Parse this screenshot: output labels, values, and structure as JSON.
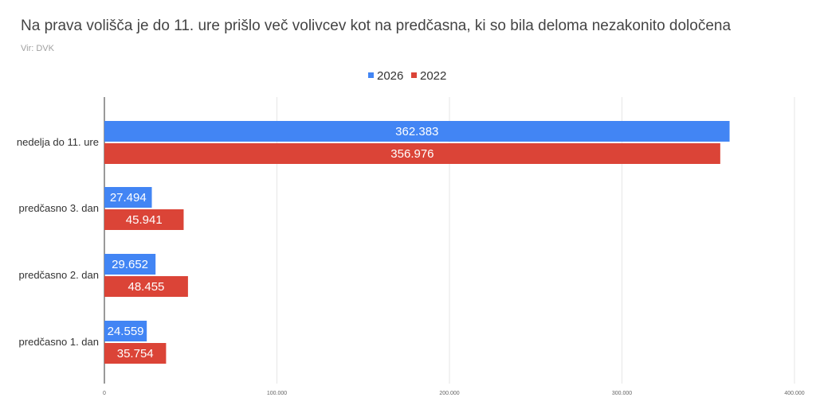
{
  "chart_data": {
    "type": "bar",
    "orientation": "horizontal",
    "title": "Na prava volišča je do 11. ure prišlo več volivcev kot na predčasna, ki so bila deloma nezakonito določena",
    "subtitle": "Vir: DVK",
    "categories": [
      "nedelja do 11. ure",
      "predčasno  3. dan",
      "predčasno  2. dan",
      "predčasno 1. dan"
    ],
    "series": [
      {
        "name": "2026",
        "color": "#4285f4",
        "values": [
          362383,
          27494,
          29652,
          24559
        ],
        "labels": [
          "362.383",
          "27.494",
          "29.652",
          "24.559"
        ]
      },
      {
        "name": "2022",
        "color": "#db4437",
        "values": [
          356976,
          45941,
          48455,
          35754
        ],
        "labels": [
          "356.976",
          "45.941",
          "48.455",
          "35.754"
        ]
      }
    ],
    "xlim": [
      0,
      400000
    ],
    "xticks": [
      0,
      100000,
      200000,
      300000,
      400000
    ],
    "xtick_labels": [
      "0",
      "100.000",
      "200.000",
      "300.000",
      "400.000"
    ],
    "grid": true,
    "legend": "top-center"
  }
}
